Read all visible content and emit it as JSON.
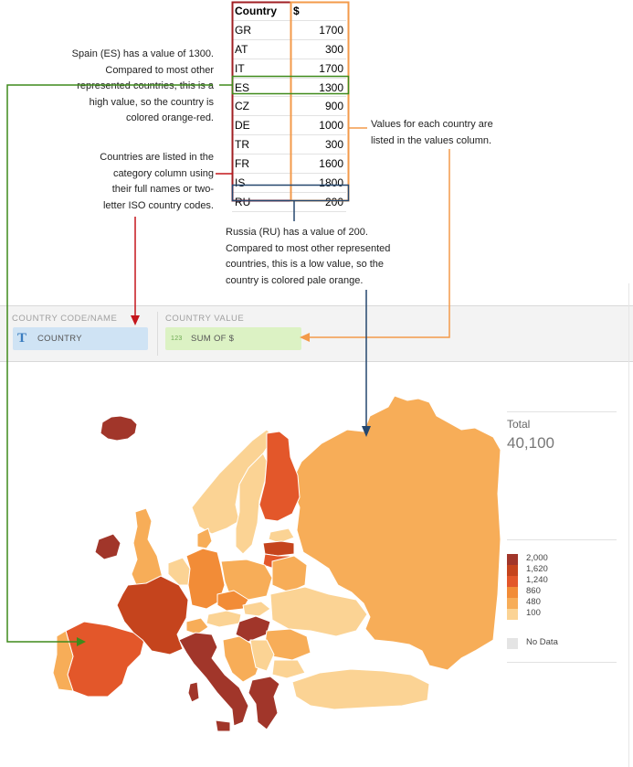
{
  "table": {
    "headers": [
      "Country",
      "$"
    ],
    "rows": [
      [
        "GR",
        "1700"
      ],
      [
        "AT",
        "300"
      ],
      [
        "IT",
        "1700"
      ],
      [
        "ES",
        "1300"
      ],
      [
        "CZ",
        "900"
      ],
      [
        "DE",
        "1000"
      ],
      [
        "TR",
        "300"
      ],
      [
        "FR",
        "1600"
      ],
      [
        "IS",
        "1800"
      ],
      [
        "RU",
        "200"
      ]
    ]
  },
  "annotations": {
    "spain": [
      "Spain (ES) has a value of 1300.",
      "Compared to most other",
      "represented countries, this is a",
      "high value, so the country is",
      "colored orange-red."
    ],
    "category": [
      "Countries are listed in the",
      "category column using",
      "their full names or two-",
      "letter ISO country codes."
    ],
    "values": [
      "Values for each country are",
      "listed in the values column."
    ],
    "russia": [
      "Russia (RU) has a value of 200.",
      "Compared to most other represented",
      "countries, this is a low value, so the",
      "country is colored pale orange."
    ]
  },
  "shelf": {
    "country_code_label": "COUNTRY CODE/NAME",
    "country_value_label": "COUNTRY VALUE",
    "country_pill": "COUNTRY",
    "country_pill_icon": "T",
    "value_pill": "SUM OF $",
    "value_pill_icon": "123"
  },
  "summary": {
    "label": "Total",
    "value": "40,100"
  },
  "legend": {
    "items": [
      {
        "label": "2,000",
        "color": "#a1362a"
      },
      {
        "label": "1,620",
        "color": "#c5441d"
      },
      {
        "label": "1,240",
        "color": "#e3572a"
      },
      {
        "label": "860",
        "color": "#f28c37"
      },
      {
        "label": "480",
        "color": "#f7ad58"
      },
      {
        "label": "100",
        "color": "#fbd394"
      }
    ],
    "no_data": {
      "label": "No Data",
      "color": "#e4e4e4"
    }
  },
  "colors": {
    "category_box": "#a01f23",
    "values_box": "#f39a4a",
    "spain_arrow": "#3f8a1b",
    "category_arrow": "#c4161c",
    "values_arrow": "#f39a4a",
    "russia_arrow": "#25476e"
  }
}
